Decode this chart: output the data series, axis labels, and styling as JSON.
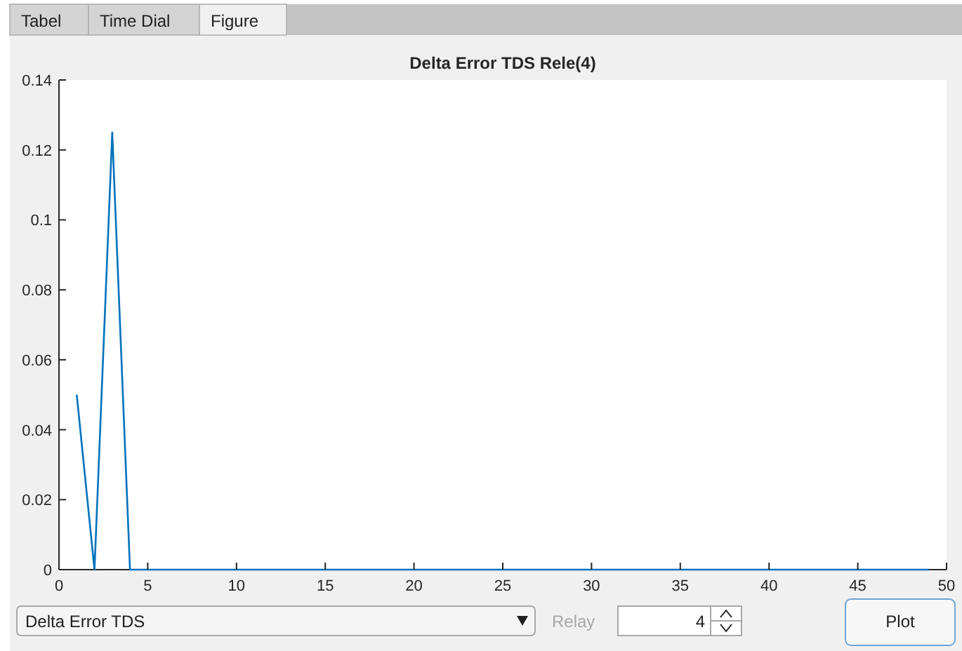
{
  "chart_data": {
    "type": "line",
    "title": "Delta Error TDS Rele(4)",
    "x": [
      1,
      2,
      3,
      4,
      5,
      6,
      7,
      8,
      9,
      10,
      11,
      12,
      13,
      14,
      15,
      16,
      17,
      18,
      19,
      20,
      21,
      22,
      23,
      24,
      25,
      26,
      27,
      28,
      29,
      30,
      31,
      32,
      33,
      34,
      35,
      36,
      37,
      38,
      39,
      40,
      41,
      42,
      43,
      44,
      45,
      46,
      47,
      48,
      49
    ],
    "series": [
      {
        "color": "#0072bd",
        "values": [
          0.05,
          0,
          0.125,
          0,
          0,
          0,
          0,
          0,
          0,
          0,
          0,
          0,
          0,
          0,
          0,
          0,
          0,
          0,
          0,
          0,
          0,
          0,
          0,
          0,
          0,
          0,
          0,
          0,
          0,
          0,
          0,
          0,
          0,
          0,
          0,
          0,
          0,
          0,
          0,
          0,
          0,
          0,
          0,
          0,
          0,
          0,
          0,
          0,
          0
        ]
      }
    ],
    "xlim": [
      0,
      50
    ],
    "xticks": [
      0,
      5,
      10,
      15,
      20,
      25,
      30,
      35,
      40,
      45,
      50
    ],
    "ylim": [
      0,
      0.14
    ],
    "yticks": [
      0,
      0.02,
      0.04,
      0.06,
      0.08,
      0.1,
      0.12,
      0.14
    ],
    "grid": false,
    "annotations": [
      "Tabel",
      "Time Dial",
      "Figure",
      "Delta Error TDS",
      "Relay",
      "4",
      "Plot"
    ]
  }
}
